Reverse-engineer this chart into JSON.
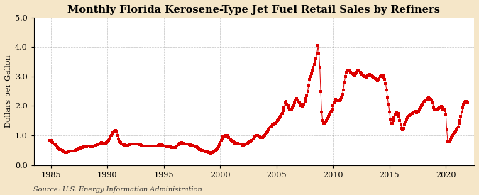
{
  "title": "Monthly Florida Kerosene-Type Jet Fuel Retail Sales by Refiners",
  "ylabel": "Dollars per Gallon",
  "source": "Source: U.S. Energy Information Administration",
  "xlim": [
    1983.5,
    2022.5
  ],
  "ylim": [
    0.0,
    5.0
  ],
  "xticks": [
    1985,
    1990,
    1995,
    2000,
    2005,
    2010,
    2015,
    2020
  ],
  "yticks": [
    0.0,
    1.0,
    2.0,
    3.0,
    4.0,
    5.0
  ],
  "marker_color": "#dd0000",
  "figure_background": "#f5e6c8",
  "axes_background": "#ffffff",
  "grid_color": "#999999",
  "title_fontsize": 10.5,
  "label_fontsize": 8,
  "tick_fontsize": 8,
  "source_fontsize": 7,
  "data": [
    [
      1984.917,
      0.83
    ],
    [
      1985.0,
      0.83
    ],
    [
      1985.083,
      0.79
    ],
    [
      1985.167,
      0.75
    ],
    [
      1985.25,
      0.72
    ],
    [
      1985.333,
      0.7
    ],
    [
      1985.417,
      0.68
    ],
    [
      1985.5,
      0.65
    ],
    [
      1985.583,
      0.6
    ],
    [
      1985.667,
      0.55
    ],
    [
      1985.75,
      0.53
    ],
    [
      1985.833,
      0.52
    ],
    [
      1985.917,
      0.51
    ],
    [
      1986.0,
      0.5
    ],
    [
      1986.083,
      0.47
    ],
    [
      1986.167,
      0.45
    ],
    [
      1986.25,
      0.43
    ],
    [
      1986.333,
      0.42
    ],
    [
      1986.417,
      0.43
    ],
    [
      1986.5,
      0.44
    ],
    [
      1986.583,
      0.45
    ],
    [
      1986.667,
      0.46
    ],
    [
      1986.75,
      0.46
    ],
    [
      1986.833,
      0.47
    ],
    [
      1986.917,
      0.47
    ],
    [
      1987.0,
      0.47
    ],
    [
      1987.083,
      0.48
    ],
    [
      1987.167,
      0.49
    ],
    [
      1987.25,
      0.51
    ],
    [
      1987.333,
      0.52
    ],
    [
      1987.417,
      0.54
    ],
    [
      1987.5,
      0.55
    ],
    [
      1987.583,
      0.57
    ],
    [
      1987.667,
      0.58
    ],
    [
      1987.75,
      0.59
    ],
    [
      1987.833,
      0.6
    ],
    [
      1987.917,
      0.61
    ],
    [
      1988.0,
      0.62
    ],
    [
      1988.083,
      0.62
    ],
    [
      1988.167,
      0.62
    ],
    [
      1988.25,
      0.63
    ],
    [
      1988.333,
      0.63
    ],
    [
      1988.417,
      0.63
    ],
    [
      1988.5,
      0.62
    ],
    [
      1988.583,
      0.62
    ],
    [
      1988.667,
      0.62
    ],
    [
      1988.75,
      0.63
    ],
    [
      1988.833,
      0.64
    ],
    [
      1988.917,
      0.65
    ],
    [
      1989.0,
      0.67
    ],
    [
      1989.083,
      0.68
    ],
    [
      1989.167,
      0.7
    ],
    [
      1989.25,
      0.72
    ],
    [
      1989.333,
      0.73
    ],
    [
      1989.417,
      0.74
    ],
    [
      1989.5,
      0.75
    ],
    [
      1989.583,
      0.74
    ],
    [
      1989.667,
      0.73
    ],
    [
      1989.75,
      0.73
    ],
    [
      1989.833,
      0.73
    ],
    [
      1989.917,
      0.75
    ],
    [
      1990.0,
      0.78
    ],
    [
      1990.083,
      0.82
    ],
    [
      1990.167,
      0.88
    ],
    [
      1990.25,
      0.94
    ],
    [
      1990.333,
      1.0
    ],
    [
      1990.417,
      1.05
    ],
    [
      1990.5,
      1.1
    ],
    [
      1990.583,
      1.15
    ],
    [
      1990.667,
      1.18
    ],
    [
      1990.75,
      1.18
    ],
    [
      1990.833,
      1.12
    ],
    [
      1990.917,
      1.0
    ],
    [
      1991.0,
      0.88
    ],
    [
      1991.083,
      0.8
    ],
    [
      1991.167,
      0.75
    ],
    [
      1991.25,
      0.72
    ],
    [
      1991.333,
      0.7
    ],
    [
      1991.417,
      0.69
    ],
    [
      1991.5,
      0.68
    ],
    [
      1991.583,
      0.67
    ],
    [
      1991.667,
      0.66
    ],
    [
      1991.75,
      0.66
    ],
    [
      1991.833,
      0.67
    ],
    [
      1991.917,
      0.68
    ],
    [
      1992.0,
      0.69
    ],
    [
      1992.083,
      0.7
    ],
    [
      1992.167,
      0.71
    ],
    [
      1992.25,
      0.72
    ],
    [
      1992.333,
      0.72
    ],
    [
      1992.417,
      0.72
    ],
    [
      1992.5,
      0.72
    ],
    [
      1992.583,
      0.71
    ],
    [
      1992.667,
      0.7
    ],
    [
      1992.75,
      0.7
    ],
    [
      1992.833,
      0.69
    ],
    [
      1992.917,
      0.68
    ],
    [
      1993.0,
      0.67
    ],
    [
      1993.083,
      0.66
    ],
    [
      1993.167,
      0.65
    ],
    [
      1993.25,
      0.64
    ],
    [
      1993.333,
      0.63
    ],
    [
      1993.417,
      0.63
    ],
    [
      1993.5,
      0.63
    ],
    [
      1993.583,
      0.63
    ],
    [
      1993.667,
      0.63
    ],
    [
      1993.75,
      0.63
    ],
    [
      1993.833,
      0.63
    ],
    [
      1993.917,
      0.63
    ],
    [
      1994.0,
      0.63
    ],
    [
      1994.083,
      0.63
    ],
    [
      1994.167,
      0.63
    ],
    [
      1994.25,
      0.63
    ],
    [
      1994.333,
      0.64
    ],
    [
      1994.417,
      0.65
    ],
    [
      1994.5,
      0.66
    ],
    [
      1994.583,
      0.67
    ],
    [
      1994.667,
      0.68
    ],
    [
      1994.75,
      0.68
    ],
    [
      1994.833,
      0.67
    ],
    [
      1994.917,
      0.66
    ],
    [
      1995.0,
      0.65
    ],
    [
      1995.083,
      0.64
    ],
    [
      1995.167,
      0.63
    ],
    [
      1995.25,
      0.62
    ],
    [
      1995.333,
      0.62
    ],
    [
      1995.417,
      0.62
    ],
    [
      1995.5,
      0.62
    ],
    [
      1995.583,
      0.61
    ],
    [
      1995.667,
      0.6
    ],
    [
      1995.75,
      0.59
    ],
    [
      1995.833,
      0.59
    ],
    [
      1995.917,
      0.58
    ],
    [
      1996.0,
      0.6
    ],
    [
      1996.083,
      0.62
    ],
    [
      1996.167,
      0.65
    ],
    [
      1996.25,
      0.68
    ],
    [
      1996.333,
      0.71
    ],
    [
      1996.417,
      0.73
    ],
    [
      1996.5,
      0.75
    ],
    [
      1996.583,
      0.75
    ],
    [
      1996.667,
      0.74
    ],
    [
      1996.75,
      0.73
    ],
    [
      1996.833,
      0.72
    ],
    [
      1996.917,
      0.72
    ],
    [
      1997.0,
      0.72
    ],
    [
      1997.083,
      0.71
    ],
    [
      1997.167,
      0.7
    ],
    [
      1997.25,
      0.69
    ],
    [
      1997.333,
      0.68
    ],
    [
      1997.417,
      0.67
    ],
    [
      1997.5,
      0.66
    ],
    [
      1997.583,
      0.65
    ],
    [
      1997.667,
      0.64
    ],
    [
      1997.75,
      0.63
    ],
    [
      1997.833,
      0.62
    ],
    [
      1997.917,
      0.61
    ],
    [
      1998.0,
      0.58
    ],
    [
      1998.083,
      0.55
    ],
    [
      1998.167,
      0.53
    ],
    [
      1998.25,
      0.51
    ],
    [
      1998.333,
      0.5
    ],
    [
      1998.417,
      0.49
    ],
    [
      1998.5,
      0.48
    ],
    [
      1998.583,
      0.47
    ],
    [
      1998.667,
      0.46
    ],
    [
      1998.75,
      0.45
    ],
    [
      1998.833,
      0.44
    ],
    [
      1998.917,
      0.43
    ],
    [
      1999.0,
      0.42
    ],
    [
      1999.083,
      0.41
    ],
    [
      1999.167,
      0.41
    ],
    [
      1999.25,
      0.42
    ],
    [
      1999.333,
      0.43
    ],
    [
      1999.417,
      0.44
    ],
    [
      1999.5,
      0.46
    ],
    [
      1999.583,
      0.49
    ],
    [
      1999.667,
      0.53
    ],
    [
      1999.75,
      0.57
    ],
    [
      1999.833,
      0.62
    ],
    [
      1999.917,
      0.68
    ],
    [
      2000.0,
      0.75
    ],
    [
      2000.083,
      0.83
    ],
    [
      2000.167,
      0.9
    ],
    [
      2000.25,
      0.95
    ],
    [
      2000.333,
      0.98
    ],
    [
      2000.417,
      1.0
    ],
    [
      2000.5,
      1.01
    ],
    [
      2000.583,
      1.0
    ],
    [
      2000.667,
      0.97
    ],
    [
      2000.75,
      0.93
    ],
    [
      2000.833,
      0.88
    ],
    [
      2000.917,
      0.85
    ],
    [
      2001.0,
      0.82
    ],
    [
      2001.083,
      0.8
    ],
    [
      2001.167,
      0.78
    ],
    [
      2001.25,
      0.76
    ],
    [
      2001.333,
      0.74
    ],
    [
      2001.417,
      0.73
    ],
    [
      2001.5,
      0.73
    ],
    [
      2001.583,
      0.73
    ],
    [
      2001.667,
      0.72
    ],
    [
      2001.75,
      0.71
    ],
    [
      2001.833,
      0.7
    ],
    [
      2001.917,
      0.68
    ],
    [
      2002.0,
      0.67
    ],
    [
      2002.083,
      0.67
    ],
    [
      2002.167,
      0.68
    ],
    [
      2002.25,
      0.7
    ],
    [
      2002.333,
      0.72
    ],
    [
      2002.417,
      0.74
    ],
    [
      2002.5,
      0.76
    ],
    [
      2002.583,
      0.78
    ],
    [
      2002.667,
      0.8
    ],
    [
      2002.75,
      0.82
    ],
    [
      2002.833,
      0.84
    ],
    [
      2002.917,
      0.88
    ],
    [
      2003.0,
      0.92
    ],
    [
      2003.083,
      0.96
    ],
    [
      2003.167,
      0.99
    ],
    [
      2003.25,
      1.0
    ],
    [
      2003.333,
      1.0
    ],
    [
      2003.417,
      0.98
    ],
    [
      2003.5,
      0.95
    ],
    [
      2003.583,
      0.93
    ],
    [
      2003.667,
      0.92
    ],
    [
      2003.75,
      0.93
    ],
    [
      2003.833,
      0.96
    ],
    [
      2003.917,
      1.0
    ],
    [
      2004.0,
      1.05
    ],
    [
      2004.083,
      1.1
    ],
    [
      2004.167,
      1.15
    ],
    [
      2004.25,
      1.2
    ],
    [
      2004.333,
      1.24
    ],
    [
      2004.417,
      1.28
    ],
    [
      2004.5,
      1.3
    ],
    [
      2004.583,
      1.32
    ],
    [
      2004.667,
      1.35
    ],
    [
      2004.75,
      1.38
    ],
    [
      2004.833,
      1.4
    ],
    [
      2004.917,
      1.42
    ],
    [
      2005.0,
      1.45
    ],
    [
      2005.083,
      1.5
    ],
    [
      2005.167,
      1.55
    ],
    [
      2005.25,
      1.6
    ],
    [
      2005.333,
      1.65
    ],
    [
      2005.417,
      1.7
    ],
    [
      2005.5,
      1.75
    ],
    [
      2005.583,
      1.85
    ],
    [
      2005.667,
      1.95
    ],
    [
      2005.75,
      2.1
    ],
    [
      2005.833,
      2.15
    ],
    [
      2005.917,
      2.05
    ],
    [
      2006.0,
      2.0
    ],
    [
      2006.083,
      1.95
    ],
    [
      2006.167,
      1.9
    ],
    [
      2006.25,
      1.88
    ],
    [
      2006.333,
      1.9
    ],
    [
      2006.417,
      1.95
    ],
    [
      2006.5,
      2.0
    ],
    [
      2006.583,
      2.1
    ],
    [
      2006.667,
      2.2
    ],
    [
      2006.75,
      2.25
    ],
    [
      2006.833,
      2.2
    ],
    [
      2006.917,
      2.15
    ],
    [
      2007.0,
      2.1
    ],
    [
      2007.083,
      2.05
    ],
    [
      2007.167,
      2.0
    ],
    [
      2007.25,
      1.98
    ],
    [
      2007.333,
      2.0
    ],
    [
      2007.417,
      2.05
    ],
    [
      2007.5,
      2.15
    ],
    [
      2007.583,
      2.25
    ],
    [
      2007.667,
      2.35
    ],
    [
      2007.75,
      2.5
    ],
    [
      2007.833,
      2.7
    ],
    [
      2007.917,
      2.9
    ],
    [
      2008.0,
      3.0
    ],
    [
      2008.083,
      3.1
    ],
    [
      2008.167,
      3.2
    ],
    [
      2008.25,
      3.3
    ],
    [
      2008.333,
      3.4
    ],
    [
      2008.417,
      3.5
    ],
    [
      2008.5,
      3.6
    ],
    [
      2008.583,
      3.8
    ],
    [
      2008.667,
      4.05
    ],
    [
      2008.75,
      3.8
    ],
    [
      2008.833,
      3.3
    ],
    [
      2008.917,
      2.5
    ],
    [
      2009.0,
      1.8
    ],
    [
      2009.083,
      1.5
    ],
    [
      2009.167,
      1.4
    ],
    [
      2009.25,
      1.42
    ],
    [
      2009.333,
      1.45
    ],
    [
      2009.417,
      1.5
    ],
    [
      2009.5,
      1.58
    ],
    [
      2009.583,
      1.65
    ],
    [
      2009.667,
      1.72
    ],
    [
      2009.75,
      1.78
    ],
    [
      2009.833,
      1.83
    ],
    [
      2009.917,
      1.88
    ],
    [
      2010.0,
      2.0
    ],
    [
      2010.083,
      2.1
    ],
    [
      2010.167,
      2.18
    ],
    [
      2010.25,
      2.22
    ],
    [
      2010.333,
      2.2
    ],
    [
      2010.417,
      2.18
    ],
    [
      2010.5,
      2.17
    ],
    [
      2010.583,
      2.18
    ],
    [
      2010.667,
      2.22
    ],
    [
      2010.75,
      2.28
    ],
    [
      2010.833,
      2.4
    ],
    [
      2010.917,
      2.55
    ],
    [
      2011.0,
      2.8
    ],
    [
      2011.083,
      3.0
    ],
    [
      2011.167,
      3.15
    ],
    [
      2011.25,
      3.2
    ],
    [
      2011.333,
      3.22
    ],
    [
      2011.417,
      3.2
    ],
    [
      2011.5,
      3.18
    ],
    [
      2011.583,
      3.15
    ],
    [
      2011.667,
      3.12
    ],
    [
      2011.75,
      3.1
    ],
    [
      2011.833,
      3.08
    ],
    [
      2011.917,
      3.05
    ],
    [
      2012.0,
      3.1
    ],
    [
      2012.083,
      3.15
    ],
    [
      2012.167,
      3.18
    ],
    [
      2012.25,
      3.2
    ],
    [
      2012.333,
      3.18
    ],
    [
      2012.417,
      3.15
    ],
    [
      2012.5,
      3.1
    ],
    [
      2012.583,
      3.08
    ],
    [
      2012.667,
      3.05
    ],
    [
      2012.75,
      3.02
    ],
    [
      2012.833,
      3.0
    ],
    [
      2012.917,
      2.98
    ],
    [
      2013.0,
      3.0
    ],
    [
      2013.083,
      3.02
    ],
    [
      2013.167,
      3.05
    ],
    [
      2013.25,
      3.08
    ],
    [
      2013.333,
      3.05
    ],
    [
      2013.417,
      3.02
    ],
    [
      2013.5,
      3.0
    ],
    [
      2013.583,
      2.98
    ],
    [
      2013.667,
      2.95
    ],
    [
      2013.75,
      2.92
    ],
    [
      2013.833,
      2.9
    ],
    [
      2013.917,
      2.88
    ],
    [
      2014.0,
      2.9
    ],
    [
      2014.083,
      2.95
    ],
    [
      2014.167,
      3.0
    ],
    [
      2014.25,
      3.05
    ],
    [
      2014.333,
      3.05
    ],
    [
      2014.417,
      3.02
    ],
    [
      2014.5,
      2.98
    ],
    [
      2014.583,
      2.9
    ],
    [
      2014.667,
      2.75
    ],
    [
      2014.75,
      2.55
    ],
    [
      2014.833,
      2.3
    ],
    [
      2014.917,
      2.05
    ],
    [
      2015.0,
      1.8
    ],
    [
      2015.083,
      1.55
    ],
    [
      2015.167,
      1.4
    ],
    [
      2015.25,
      1.42
    ],
    [
      2015.333,
      1.5
    ],
    [
      2015.417,
      1.6
    ],
    [
      2015.5,
      1.7
    ],
    [
      2015.583,
      1.78
    ],
    [
      2015.667,
      1.8
    ],
    [
      2015.75,
      1.75
    ],
    [
      2015.833,
      1.65
    ],
    [
      2015.917,
      1.5
    ],
    [
      2016.0,
      1.35
    ],
    [
      2016.083,
      1.25
    ],
    [
      2016.167,
      1.2
    ],
    [
      2016.25,
      1.25
    ],
    [
      2016.333,
      1.35
    ],
    [
      2016.417,
      1.45
    ],
    [
      2016.5,
      1.55
    ],
    [
      2016.583,
      1.6
    ],
    [
      2016.667,
      1.65
    ],
    [
      2016.75,
      1.68
    ],
    [
      2016.833,
      1.7
    ],
    [
      2016.917,
      1.72
    ],
    [
      2017.0,
      1.75
    ],
    [
      2017.083,
      1.78
    ],
    [
      2017.167,
      1.8
    ],
    [
      2017.25,
      1.82
    ],
    [
      2017.333,
      1.8
    ],
    [
      2017.417,
      1.78
    ],
    [
      2017.5,
      1.8
    ],
    [
      2017.583,
      1.82
    ],
    [
      2017.667,
      1.88
    ],
    [
      2017.75,
      1.95
    ],
    [
      2017.833,
      2.0
    ],
    [
      2017.917,
      2.05
    ],
    [
      2018.0,
      2.1
    ],
    [
      2018.083,
      2.15
    ],
    [
      2018.167,
      2.18
    ],
    [
      2018.25,
      2.2
    ],
    [
      2018.333,
      2.22
    ],
    [
      2018.417,
      2.25
    ],
    [
      2018.5,
      2.28
    ],
    [
      2018.583,
      2.25
    ],
    [
      2018.667,
      2.22
    ],
    [
      2018.75,
      2.2
    ],
    [
      2018.833,
      2.1
    ],
    [
      2018.917,
      1.95
    ],
    [
      2019.0,
      1.9
    ],
    [
      2019.083,
      1.88
    ],
    [
      2019.167,
      1.88
    ],
    [
      2019.25,
      1.9
    ],
    [
      2019.333,
      1.92
    ],
    [
      2019.417,
      1.95
    ],
    [
      2019.5,
      1.97
    ],
    [
      2019.583,
      1.98
    ],
    [
      2019.667,
      1.95
    ],
    [
      2019.75,
      1.9
    ],
    [
      2019.833,
      1.88
    ],
    [
      2019.917,
      1.85
    ],
    [
      2020.0,
      1.7
    ],
    [
      2020.083,
      1.2
    ],
    [
      2020.167,
      0.8
    ],
    [
      2020.25,
      0.78
    ],
    [
      2020.333,
      0.8
    ],
    [
      2020.417,
      0.85
    ],
    [
      2020.5,
      0.92
    ],
    [
      2020.583,
      1.0
    ],
    [
      2020.667,
      1.05
    ],
    [
      2020.75,
      1.1
    ],
    [
      2020.833,
      1.15
    ],
    [
      2020.917,
      1.2
    ],
    [
      2021.0,
      1.25
    ],
    [
      2021.083,
      1.3
    ],
    [
      2021.167,
      1.4
    ],
    [
      2021.25,
      1.5
    ],
    [
      2021.333,
      1.65
    ],
    [
      2021.417,
      1.8
    ],
    [
      2021.5,
      1.95
    ],
    [
      2021.583,
      2.05
    ],
    [
      2021.667,
      2.1
    ],
    [
      2021.75,
      2.15
    ],
    [
      2021.833,
      2.15
    ],
    [
      2021.917,
      2.1
    ]
  ]
}
